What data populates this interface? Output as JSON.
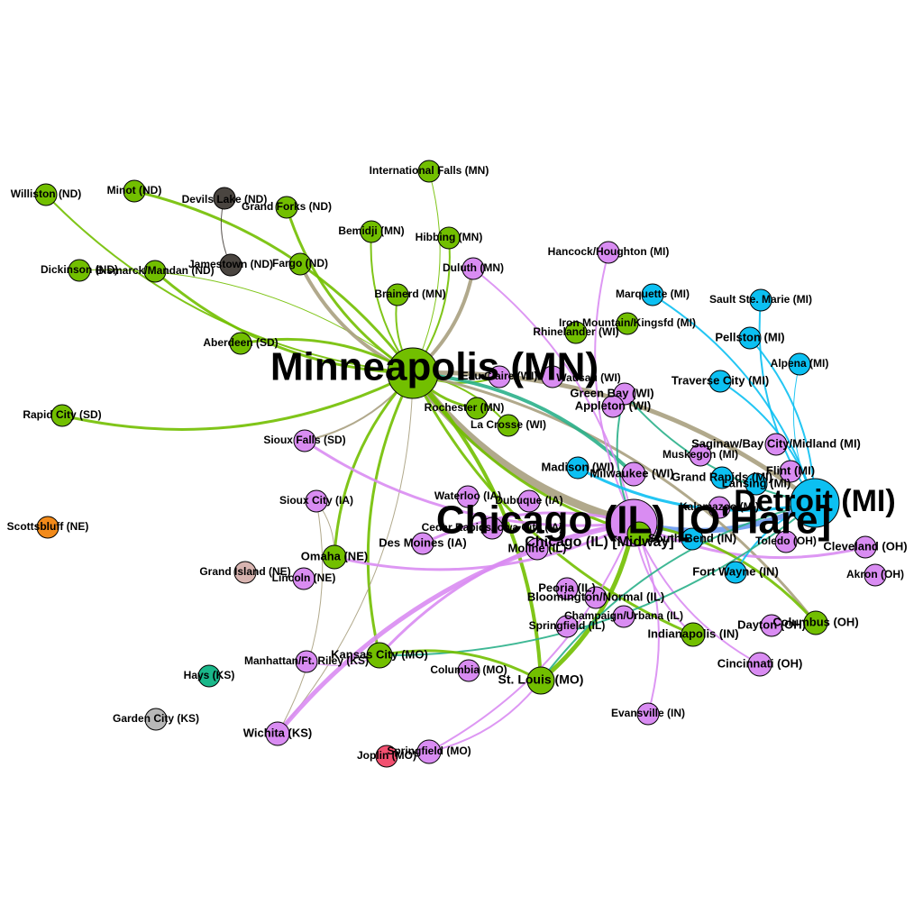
{
  "diagram": {
    "type": "network",
    "groups": {
      "minneapolis": "#72bf00",
      "chicago": "#d98cf2",
      "detroit": "#0cc0f2",
      "dark": "#4a4540",
      "scottsbluff": "#f28a1a",
      "grandisland": "#d8b4b0",
      "hays": "#1ab88a",
      "gardencity": "#b8b8b8",
      "joplin": "#f25070",
      "trunk": "#a8a080",
      "teal": "#2ab08a",
      "blue": "#6a9af0"
    },
    "nodes": [
      {
        "id": "msp",
        "label": "Minneapolis (MN)",
        "group": "minneapolis",
        "size": "xl"
      },
      {
        "id": "ord",
        "label": "Chicago (IL) [O'Hare]",
        "group": "chicago",
        "size": "xl"
      },
      {
        "id": "dtw",
        "label": "Detroit (MI)",
        "group": "detroit",
        "size": "l"
      },
      {
        "id": "williston",
        "label": "Williston (ND)",
        "group": "minneapolis",
        "size": "s"
      },
      {
        "id": "minot",
        "label": "Minot (ND)",
        "group": "minneapolis",
        "size": "s"
      },
      {
        "id": "devilslake",
        "label": "Devils Lake (ND)",
        "group": "dark",
        "size": "s"
      },
      {
        "id": "grandforks",
        "label": "Grand Forks (ND)",
        "group": "minneapolis",
        "size": "s"
      },
      {
        "id": "intlfalls",
        "label": "International Falls (MN)",
        "group": "minneapolis",
        "size": "s"
      },
      {
        "id": "bemidji",
        "label": "Bemidji (MN)",
        "group": "minneapolis",
        "size": "s"
      },
      {
        "id": "hibbing",
        "label": "Hibbing (MN)",
        "group": "minneapolis",
        "size": "s"
      },
      {
        "id": "dickinson",
        "label": "Dickinson (ND)",
        "group": "minneapolis",
        "size": "s"
      },
      {
        "id": "bismarck",
        "label": "Bismarck/Mandan (ND)",
        "group": "minneapolis",
        "size": "s"
      },
      {
        "id": "jamestown",
        "label": "Jamestown (ND)",
        "group": "dark",
        "size": "s"
      },
      {
        "id": "fargo",
        "label": "Fargo (ND)",
        "group": "minneapolis",
        "size": "s"
      },
      {
        "id": "duluth",
        "label": "Duluth (MN)",
        "group": "chicago",
        "size": "s"
      },
      {
        "id": "hancock",
        "label": "Hancock/Houghton (MI)",
        "group": "chicago",
        "size": "s"
      },
      {
        "id": "brainerd",
        "label": "Brainerd (MN)",
        "group": "minneapolis",
        "size": "s"
      },
      {
        "id": "marquette",
        "label": "Marquette (MI)",
        "group": "detroit",
        "size": "s"
      },
      {
        "id": "saultstemarie",
        "label": "Sault Ste. Marie (MI)",
        "group": "detroit",
        "size": "s"
      },
      {
        "id": "ironmtn",
        "label": "Iron Mountain/Kingsfd (MI)",
        "group": "minneapolis",
        "size": "s"
      },
      {
        "id": "rhinelander",
        "label": "Rhinelander (WI)",
        "group": "minneapolis",
        "size": "s"
      },
      {
        "id": "pellston",
        "label": "Pellston (MI)",
        "group": "detroit",
        "size": "s"
      },
      {
        "id": "aberdeen",
        "label": "Aberdeen (SD)",
        "group": "minneapolis",
        "size": "s"
      },
      {
        "id": "alpena",
        "label": "Alpena (MI)",
        "group": "detroit",
        "size": "s"
      },
      {
        "id": "eauclaire",
        "label": "Eau Claire (WI)",
        "group": "chicago",
        "size": "s"
      },
      {
        "id": "wausau",
        "label": "Wausau (WI)",
        "group": "chicago",
        "size": "s"
      },
      {
        "id": "traversecity",
        "label": "Traverse City (MI)",
        "group": "detroit",
        "size": "s"
      },
      {
        "id": "greenbay",
        "label": "Green Bay (WI)",
        "group": "chicago",
        "size": "s"
      },
      {
        "id": "rochester",
        "label": "Rochester (MN)",
        "group": "minneapolis",
        "size": "s"
      },
      {
        "id": "appleton",
        "label": "Appleton (WI)",
        "group": "chicago",
        "size": "s"
      },
      {
        "id": "rapidcity",
        "label": "Rapid City (SD)",
        "group": "minneapolis",
        "size": "s"
      },
      {
        "id": "lacrosse",
        "label": "La Crosse (WI)",
        "group": "minneapolis",
        "size": "s"
      },
      {
        "id": "siouxfalls",
        "label": "Sioux Falls (SD)",
        "group": "chicago",
        "size": "s"
      },
      {
        "id": "saginaw",
        "label": "Saginaw/Bay City/Midland (MI)",
        "group": "chicago",
        "size": "s"
      },
      {
        "id": "muskegon",
        "label": "Muskegon (MI)",
        "group": "chicago",
        "size": "s"
      },
      {
        "id": "madison",
        "label": "Madison (WI)",
        "group": "detroit",
        "size": "s"
      },
      {
        "id": "milwaukee",
        "label": "Milwaukee (WI)",
        "group": "chicago",
        "size": "s"
      },
      {
        "id": "flint",
        "label": "Flint (MI)",
        "group": "chicago",
        "size": "s"
      },
      {
        "id": "grandrapids",
        "label": "Grand Rapids (MI)",
        "group": "detroit",
        "size": "s"
      },
      {
        "id": "lansing",
        "label": "Lansing (MI)",
        "group": "detroit",
        "size": "s"
      },
      {
        "id": "waterloo",
        "label": "Waterloo (IA)",
        "group": "chicago",
        "size": "s"
      },
      {
        "id": "siouxcity",
        "label": "Sioux City (IA)",
        "group": "chicago",
        "size": "s"
      },
      {
        "id": "dubuque",
        "label": "Dubuque (IA)",
        "group": "chicago",
        "size": "s"
      },
      {
        "id": "kalamazoo",
        "label": "Kalamazoo (MI)",
        "group": "chicago",
        "size": "s"
      },
      {
        "id": "cedarrapids",
        "label": "Cedar Rapids/Iowa City (IA)",
        "group": "chicago",
        "size": "s"
      },
      {
        "id": "midway",
        "label": "Chicago (IL) [Midway]",
        "group": "minneapolis",
        "size": "s"
      },
      {
        "id": "southbend",
        "label": "South Bend (IN)",
        "group": "detroit",
        "size": "s"
      },
      {
        "id": "scottsbluff",
        "label": "Scottsbluff (NE)",
        "group": "scottsbluff",
        "size": "s"
      },
      {
        "id": "omaha",
        "label": "Omaha (NE)",
        "group": "minneapolis",
        "size": "s"
      },
      {
        "id": "desmoines",
        "label": "Des Moines (IA)",
        "group": "chicago",
        "size": "s"
      },
      {
        "id": "moline",
        "label": "Moline (IL)",
        "group": "chicago",
        "size": "s"
      },
      {
        "id": "toledo",
        "label": "Toledo (OH)",
        "group": "chicago",
        "size": "s"
      },
      {
        "id": "cleveland",
        "label": "Cleveland (OH)",
        "group": "chicago",
        "size": "s"
      },
      {
        "id": "grandisland",
        "label": "Grand Island (NE)",
        "group": "grandisland",
        "size": "s"
      },
      {
        "id": "lincoln",
        "label": "Lincoln (NE)",
        "group": "chicago",
        "size": "s"
      },
      {
        "id": "fortwayne",
        "label": "Fort Wayne (IN)",
        "group": "detroit",
        "size": "s"
      },
      {
        "id": "akron",
        "label": "Akron (OH)",
        "group": "chicago",
        "size": "s"
      },
      {
        "id": "peoria",
        "label": "Peoria (IL)",
        "group": "chicago",
        "size": "s"
      },
      {
        "id": "bloomington",
        "label": "Bloomington/Normal (IL)",
        "group": "chicago",
        "size": "s"
      },
      {
        "id": "champaign",
        "label": "Champaign/Urbana (IL)",
        "group": "chicago",
        "size": "s"
      },
      {
        "id": "columbus",
        "label": "Columbus (OH)",
        "group": "minneapolis",
        "size": "s"
      },
      {
        "id": "springfieldil",
        "label": "Springfield (IL)",
        "group": "chicago",
        "size": "s"
      },
      {
        "id": "dayton",
        "label": "Dayton (OH)",
        "group": "chicago",
        "size": "s"
      },
      {
        "id": "indianapolis",
        "label": "Indianapolis (IN)",
        "group": "minneapolis",
        "size": "s"
      },
      {
        "id": "kansascity",
        "label": "Kansas City (MO)",
        "group": "minneapolis",
        "size": "s"
      },
      {
        "id": "manhattan",
        "label": "Manhattan/Ft. Riley (KS)",
        "group": "chicago",
        "size": "s"
      },
      {
        "id": "cincinnati",
        "label": "Cincinnati (OH)",
        "group": "chicago",
        "size": "s"
      },
      {
        "id": "columbia",
        "label": "Columbia (MO)",
        "group": "chicago",
        "size": "s"
      },
      {
        "id": "hays",
        "label": "Hays (KS)",
        "group": "hays",
        "size": "s"
      },
      {
        "id": "stlouis",
        "label": "St. Louis (MO)",
        "group": "minneapolis",
        "size": "s"
      },
      {
        "id": "evansville",
        "label": "Evansville (IN)",
        "group": "chicago",
        "size": "s"
      },
      {
        "id": "gardencity",
        "label": "Garden City (KS)",
        "group": "gardencity",
        "size": "s"
      },
      {
        "id": "wichita",
        "label": "Wichita (KS)",
        "group": "chicago",
        "size": "s"
      },
      {
        "id": "springfieldmo",
        "label": "Springfield (MO)",
        "group": "chicago",
        "size": "s"
      },
      {
        "id": "joplin",
        "label": "Joplin (MO)",
        "group": "joplin",
        "size": "s"
      }
    ],
    "edges": [
      {
        "from": "msp",
        "to": "ord",
        "color": "trunk",
        "weight": 9
      },
      {
        "from": "msp",
        "to": "dtw",
        "color": "trunk",
        "weight": 5
      },
      {
        "from": "ord",
        "to": "dtw",
        "color": "blue",
        "weight": 6
      },
      {
        "from": "msp",
        "to": "williston",
        "color": "minneapolis",
        "weight": 2
      },
      {
        "from": "msp",
        "to": "minot",
        "color": "minneapolis",
        "weight": 3
      },
      {
        "from": "msp",
        "to": "grandforks",
        "color": "minneapolis",
        "weight": 3
      },
      {
        "from": "msp",
        "to": "intlfalls",
        "color": "minneapolis",
        "weight": 1
      },
      {
        "from": "msp",
        "to": "bemidji",
        "color": "minneapolis",
        "weight": 2
      },
      {
        "from": "msp",
        "to": "hibbing",
        "color": "minneapolis",
        "weight": 2
      },
      {
        "from": "msp",
        "to": "bismarck",
        "color": "minneapolis",
        "weight": 3
      },
      {
        "from": "msp",
        "to": "dickinson",
        "color": "minneapolis",
        "weight": 1
      },
      {
        "from": "msp",
        "to": "fargo",
        "color": "trunk",
        "weight": 4
      },
      {
        "from": "msp",
        "to": "duluth",
        "color": "trunk",
        "weight": 4
      },
      {
        "from": "msp",
        "to": "brainerd",
        "color": "minneapolis",
        "weight": 2
      },
      {
        "from": "msp",
        "to": "aberdeen",
        "color": "minneapolis",
        "weight": 3
      },
      {
        "from": "msp",
        "to": "rapidcity",
        "color": "minneapolis",
        "weight": 3
      },
      {
        "from": "msp",
        "to": "rochester",
        "color": "minneapolis",
        "weight": 3
      },
      {
        "from": "msp",
        "to": "lacrosse",
        "color": "minneapolis",
        "weight": 2
      },
      {
        "from": "msp",
        "to": "eauclaire",
        "color": "minneapolis",
        "weight": 2
      },
      {
        "from": "msp",
        "to": "siouxfalls",
        "color": "trunk",
        "weight": 2
      },
      {
        "from": "msp",
        "to": "kansascity",
        "color": "minneapolis",
        "weight": 3
      },
      {
        "from": "msp",
        "to": "stlouis",
        "color": "minneapolis",
        "weight": 4
      },
      {
        "from": "msp",
        "to": "omaha",
        "color": "minneapolis",
        "weight": 3
      },
      {
        "from": "msp",
        "to": "columbus",
        "color": "trunk",
        "weight": 3
      },
      {
        "from": "msp",
        "to": "indianapolis",
        "color": "minneapolis",
        "weight": 3
      },
      {
        "from": "msp",
        "to": "milwaukee",
        "color": "teal",
        "weight": 4
      },
      {
        "from": "msp",
        "to": "midway",
        "color": "minneapolis",
        "weight": 3
      },
      {
        "from": "msp",
        "to": "wichita",
        "color": "trunk",
        "weight": 1
      },
      {
        "from": "devilslake",
        "to": "jamestown",
        "color": "dark",
        "weight": 1
      },
      {
        "from": "ord",
        "to": "hancock",
        "color": "chicago",
        "weight": 2
      },
      {
        "from": "ord",
        "to": "duluth",
        "color": "chicago",
        "weight": 2
      },
      {
        "from": "ord",
        "to": "siouxfalls",
        "color": "chicago",
        "weight": 3
      },
      {
        "from": "ord",
        "to": "wichita",
        "color": "chicago",
        "weight": 5
      },
      {
        "from": "ord",
        "to": "springfieldmo",
        "color": "chicago",
        "weight": 2
      },
      {
        "from": "ord",
        "to": "kansascity",
        "color": "chicago",
        "weight": 3
      },
      {
        "from": "ord",
        "to": "omaha",
        "color": "chicago",
        "weight": 3
      },
      {
        "from": "ord",
        "to": "desmoines",
        "color": "chicago",
        "weight": 3
      },
      {
        "from": "ord",
        "to": "stlouis",
        "color": "minneapolis",
        "weight": 5
      },
      {
        "from": "ord",
        "to": "indianapolis",
        "color": "chicago",
        "weight": 2
      },
      {
        "from": "ord",
        "to": "evansville",
        "color": "chicago",
        "weight": 2
      },
      {
        "from": "ord",
        "to": "cleveland",
        "color": "chicago",
        "weight": 3
      },
      {
        "from": "ord",
        "to": "columbus",
        "color": "minneapolis",
        "weight": 3
      },
      {
        "from": "ord",
        "to": "cincinnati",
        "color": "chicago",
        "weight": 2
      },
      {
        "from": "ord",
        "to": "greenbay",
        "color": "teal",
        "weight": 2
      },
      {
        "from": "dtw",
        "to": "marquette",
        "color": "detroit",
        "weight": 2
      },
      {
        "from": "dtw",
        "to": "saultstemarie",
        "color": "detroit",
        "weight": 2
      },
      {
        "from": "dtw",
        "to": "pellston",
        "color": "detroit",
        "weight": 2
      },
      {
        "from": "dtw",
        "to": "alpena",
        "color": "detroit",
        "weight": 1
      },
      {
        "from": "dtw",
        "to": "traversecity",
        "color": "detroit",
        "weight": 2
      },
      {
        "from": "dtw",
        "to": "madison",
        "color": "detroit",
        "weight": 3
      },
      {
        "from": "dtw",
        "to": "fortwayne",
        "color": "detroit",
        "weight": 2
      },
      {
        "from": "dtw",
        "to": "greenbay",
        "color": "teal",
        "weight": 2
      },
      {
        "from": "dtw",
        "to": "stlouis",
        "color": "teal",
        "weight": 2
      },
      {
        "from": "dtw",
        "to": "kansascity",
        "color": "teal",
        "weight": 2
      },
      {
        "from": "stlouis",
        "to": "kansascity",
        "color": "minneapolis",
        "weight": 3
      },
      {
        "from": "stlouis",
        "to": "springfieldmo",
        "color": "chicago",
        "weight": 2
      },
      {
        "from": "omaha",
        "to": "siouxcity",
        "color": "trunk",
        "weight": 1
      },
      {
        "from": "kansascity",
        "to": "manhattan",
        "color": "chicago",
        "weight": 1
      },
      {
        "from": "wichita",
        "to": "siouxcity",
        "color": "trunk",
        "weight": 1
      }
    ]
  }
}
